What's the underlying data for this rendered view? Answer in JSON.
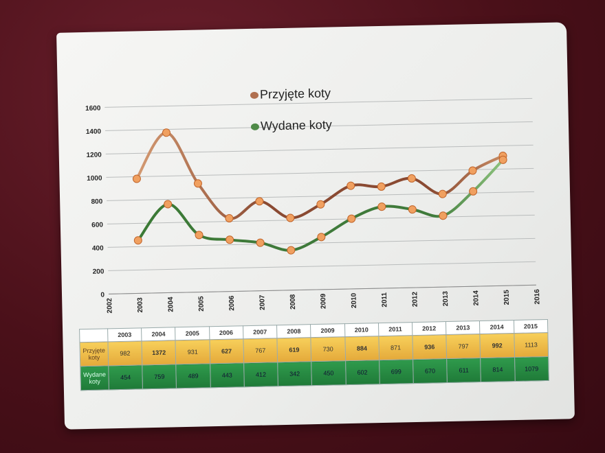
{
  "chart_data": {
    "type": "line",
    "x_ticks": [
      "2002",
      "2003",
      "2004",
      "2005",
      "2006",
      "2007",
      "2008",
      "2009",
      "2010",
      "2011",
      "2012",
      "2013",
      "2014",
      "2015",
      "2016"
    ],
    "y_ticks": [
      "0",
      "200",
      "400",
      "600",
      "800",
      "1000",
      "1200",
      "1400",
      "1600"
    ],
    "ylim": [
      0,
      1600
    ],
    "xlim": [
      2002,
      2016
    ],
    "grid": true,
    "legend": "top-center",
    "series": [
      {
        "name": "Przyjęte koty",
        "color": "#8a4a32",
        "x": [
          2003,
          2004,
          2005,
          2006,
          2007,
          2008,
          2009,
          2010,
          2011,
          2012,
          2013,
          2014,
          2015
        ],
        "values": [
          982,
          1372,
          931,
          627,
          767,
          619,
          730,
          884,
          871,
          936,
          797,
          992,
          1113
        ]
      },
      {
        "name": "Wydane koty",
        "color": "#3f7a3a",
        "x": [
          2003,
          2004,
          2005,
          2006,
          2007,
          2008,
          2009,
          2010,
          2011,
          2012,
          2013,
          2014,
          2015
        ],
        "values": [
          454,
          759,
          489,
          443,
          412,
          342,
          450,
          602,
          699,
          670,
          611,
          814,
          1079
        ]
      }
    ]
  },
  "table": {
    "years": [
      "2003",
      "2004",
      "2005",
      "2006",
      "2007",
      "2008",
      "2009",
      "2010",
      "2011",
      "2012",
      "2013",
      "2014",
      "2015"
    ],
    "rows": [
      {
        "label": "Przyjęte koty",
        "values": [
          "982",
          "1372",
          "931",
          "627",
          "767",
          "619",
          "730",
          "884",
          "871",
          "936",
          "797",
          "992",
          "1113"
        ]
      },
      {
        "label": "Wydane koty",
        "values": [
          "454",
          "759",
          "489",
          "443",
          "412",
          "342",
          "450",
          "602",
          "699",
          "670",
          "611",
          "814",
          "1079"
        ]
      }
    ]
  }
}
